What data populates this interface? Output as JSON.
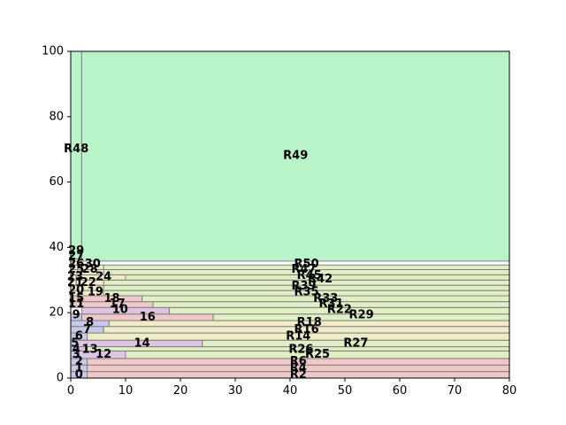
{
  "chart_data": {
    "type": "treemap-rectangles",
    "xlim": [
      0,
      80
    ],
    "ylim": [
      0,
      100
    ],
    "x_ticks": [
      "0",
      "10",
      "20",
      "30",
      "40",
      "50",
      "60",
      "70",
      "80"
    ],
    "y_ticks": [
      "0",
      "20",
      "40",
      "60",
      "80",
      "100"
    ],
    "grid": false,
    "colors": {
      "blue": "#c8c8ec",
      "red": "#f0c8c8",
      "yellow": "#f0ecc8",
      "lime": "#e0f0c4",
      "purple": "#e0c4e4",
      "green": "#b8f4c8",
      "edge": "#808080"
    },
    "rects": [
      {
        "label": "0",
        "x0": 0,
        "x1": 3,
        "y0": 0,
        "y1": 2,
        "color": "blue"
      },
      {
        "label": "R2",
        "x0": 3,
        "x1": 80,
        "y0": 0,
        "y1": 2,
        "color": "red"
      },
      {
        "label": "1",
        "x0": 0,
        "x1": 3,
        "y0": 2,
        "y1": 4,
        "color": "blue"
      },
      {
        "label": "R4",
        "x0": 3,
        "x1": 80,
        "y0": 2,
        "y1": 4,
        "color": "red"
      },
      {
        "label": "2",
        "x0": 0,
        "x1": 3,
        "y0": 4,
        "y1": 6,
        "color": "blue"
      },
      {
        "label": "R6",
        "x0": 3,
        "x1": 80,
        "y0": 4,
        "y1": 6,
        "color": "red"
      },
      {
        "label": "3",
        "x0": 0,
        "x1": 1.5,
        "y0": 6,
        "y1": 8.3,
        "color": "blue"
      },
      {
        "label": "12",
        "x0": 1.5,
        "x1": 10,
        "y0": 6,
        "y1": 8.3,
        "color": "purple"
      },
      {
        "label": "R25",
        "x0": 10,
        "x1": 80,
        "y0": 6,
        "y1": 8.3,
        "color": "lime"
      },
      {
        "label": "4",
        "x0": 0,
        "x1": 1.5,
        "y0": 8.3,
        "y1": 9.6,
        "color": "blue"
      },
      {
        "label": "13",
        "x0": 1.5,
        "x1": 3,
        "y0": 8.3,
        "y1": 9.6,
        "color": "purple"
      },
      {
        "label": "R26",
        "x0": 3,
        "x1": 80,
        "y0": 8.3,
        "y1": 9.6,
        "color": "lime"
      },
      {
        "label": "5",
        "x0": 0,
        "x1": 1,
        "y0": 9.6,
        "y1": 11.6,
        "color": "blue"
      },
      {
        "label": "14",
        "x0": 1,
        "x1": 24,
        "y0": 9.6,
        "y1": 11.6,
        "color": "purple"
      },
      {
        "label": "R27",
        "x0": 24,
        "x1": 80,
        "y0": 9.6,
        "y1": 11.6,
        "color": "lime"
      },
      {
        "label": "6",
        "x0": 0,
        "x1": 3,
        "y0": 11.6,
        "y1": 13.8,
        "color": "blue"
      },
      {
        "label": "R14",
        "x0": 3,
        "x1": 80,
        "y0": 11.6,
        "y1": 13.8,
        "color": "yellow"
      },
      {
        "label": "7",
        "x0": 0,
        "x1": 6,
        "y0": 13.8,
        "y1": 15.8,
        "color": "blue"
      },
      {
        "label": "R16",
        "x0": 6,
        "x1": 80,
        "y0": 13.8,
        "y1": 15.8,
        "color": "yellow"
      },
      {
        "label": "8",
        "x0": 0,
        "x1": 7,
        "y0": 15.8,
        "y1": 17.6,
        "color": "blue"
      },
      {
        "label": "R18",
        "x0": 7,
        "x1": 80,
        "y0": 15.8,
        "y1": 17.6,
        "color": "yellow"
      },
      {
        "label": "9",
        "x0": 0,
        "x1": 2,
        "y0": 17.6,
        "y1": 19.6,
        "color": "blue"
      },
      {
        "label": "16",
        "x0": 2,
        "x1": 26,
        "y0": 17.6,
        "y1": 19.6,
        "color": "red"
      },
      {
        "label": "R29",
        "x0": 26,
        "x1": 80,
        "y0": 17.6,
        "y1": 19.6,
        "color": "lime"
      },
      {
        "label": "10",
        "x0": 2,
        "x1": 18,
        "y0": 19.6,
        "y1": 21.6,
        "color": "purple"
      },
      {
        "label": "R22",
        "x0": 18,
        "x1": 80,
        "y0": 19.6,
        "y1": 21.6,
        "color": "lime"
      },
      {
        "label": "11",
        "x0": 0,
        "x1": 2,
        "y0": 21.6,
        "y1": 23.4,
        "color": "red"
      },
      {
        "label": "17",
        "x0": 2,
        "x1": 15,
        "y0": 21.6,
        "y1": 23.4,
        "color": "red"
      },
      {
        "label": "R31",
        "x0": 15,
        "x1": 80,
        "y0": 21.6,
        "y1": 23.4,
        "color": "lime"
      },
      {
        "label": "15",
        "x0": 0,
        "x1": 2,
        "y0": 23.4,
        "y1": 25.2,
        "color": "red"
      },
      {
        "label": "18",
        "x0": 2,
        "x1": 13,
        "y0": 23.4,
        "y1": 25.2,
        "color": "red"
      },
      {
        "label": "R33",
        "x0": 13,
        "x1": 80,
        "y0": 23.4,
        "y1": 25.2,
        "color": "lime"
      },
      {
        "label": "19",
        "x0": 0,
        "x1": 6,
        "y0": 25.2,
        "y1": 26.8,
        "color": "yellow"
      },
      {
        "label": "R35",
        "x0": 6,
        "x1": 80,
        "y0": 25.2,
        "y1": 26.8,
        "color": "lime"
      },
      {
        "label": "20",
        "x0": 0,
        "x1": 6,
        "y0": 26.8,
        "y1": 28.4,
        "color": "yellow"
      },
      {
        "label": "R39",
        "x0": 6,
        "x1": 80,
        "y0": 26.8,
        "y1": 28.4,
        "color": "lime"
      },
      {
        "label": "21",
        "x0": 0,
        "x1": 1,
        "y0": 28.4,
        "y1": 30.0,
        "color": "yellow"
      },
      {
        "label": "22",
        "x0": 1,
        "x1": 6,
        "y0": 28.4,
        "y1": 30.0,
        "color": "yellow"
      },
      {
        "label": "R42",
        "x0": 6,
        "x1": 80,
        "y0": 28.4,
        "y1": 30.0,
        "color": "lime"
      },
      {
        "label": "23",
        "x0": 0,
        "x1": 1,
        "y0": 30.0,
        "y1": 31.6,
        "color": "yellow"
      },
      {
        "label": "24",
        "x0": 1,
        "x1": 10,
        "y0": 30.0,
        "y1": 31.6,
        "color": "yellow"
      },
      {
        "label": "R45",
        "x0": 10,
        "x1": 80,
        "y0": 30.0,
        "y1": 31.6,
        "color": "lime"
      },
      {
        "label": "25",
        "x0": 0,
        "x1": 2,
        "y0": 31.6,
        "y1": 33.2,
        "color": "yellow"
      },
      {
        "label": "28",
        "x0": 2,
        "x1": 6,
        "y0": 31.6,
        "y1": 33.2,
        "color": "yellow"
      },
      {
        "label": "R47",
        "x0": 6,
        "x1": 80,
        "y0": 31.6,
        "y1": 33.2,
        "color": "lime"
      },
      {
        "label": "26",
        "x0": 0,
        "x1": 2,
        "y0": 33.2,
        "y1": 34.6,
        "color": "yellow"
      },
      {
        "label": "30",
        "x0": 2,
        "x1": 6,
        "y0": 33.2,
        "y1": 34.6,
        "color": "yellow"
      },
      {
        "label": "R50",
        "x0": 6,
        "x1": 80,
        "y0": 33.2,
        "y1": 34.6,
        "color": "lime"
      },
      {
        "label": "27",
        "x0": 0,
        "x1": 2,
        "y0": 34.6,
        "y1": 35.8,
        "color": "yellow"
      },
      {
        "label": "29",
        "x0": 0,
        "x1": 2,
        "y0": 35.8,
        "y1": 36.5,
        "color": "yellow"
      },
      {
        "label": "R48",
        "x0": 0,
        "x1": 2,
        "y0": 36.5,
        "y1": 100,
        "color": "green"
      },
      {
        "label": "R49",
        "x0": 2,
        "x1": 80,
        "y0": 35.8,
        "y1": 100,
        "color": "green"
      }
    ],
    "labels": [
      {
        "text": "0",
        "x": 1.5,
        "y": 1.0
      },
      {
        "text": "R2",
        "x": 41.5,
        "y": 1.0
      },
      {
        "text": "1",
        "x": 1.5,
        "y": 3.0
      },
      {
        "text": "R4",
        "x": 41.5,
        "y": 3.0
      },
      {
        "text": "2",
        "x": 1.5,
        "y": 5.0
      },
      {
        "text": "R6",
        "x": 41.5,
        "y": 5.0
      },
      {
        "text": "3",
        "x": 1.0,
        "y": 7.2
      },
      {
        "text": "12",
        "x": 6.0,
        "y": 7.2
      },
      {
        "text": "R25",
        "x": 45.0,
        "y": 7.2
      },
      {
        "text": "4",
        "x": 1.0,
        "y": 8.7
      },
      {
        "text": "13",
        "x": 3.5,
        "y": 8.7
      },
      {
        "text": "R26",
        "x": 42.0,
        "y": 8.7
      },
      {
        "text": "5",
        "x": 0.8,
        "y": 10.6
      },
      {
        "text": "14",
        "x": 13.0,
        "y": 10.6
      },
      {
        "text": "R27",
        "x": 52.0,
        "y": 10.6
      },
      {
        "text": "6",
        "x": 1.5,
        "y": 12.7
      },
      {
        "text": "R14",
        "x": 41.5,
        "y": 12.7
      },
      {
        "text": "7",
        "x": 3.0,
        "y": 14.8
      },
      {
        "text": "R16",
        "x": 43.0,
        "y": 14.8
      },
      {
        "text": "8",
        "x": 3.5,
        "y": 16.9
      },
      {
        "text": "R18",
        "x": 43.5,
        "y": 16.9
      },
      {
        "text": "9",
        "x": 1.0,
        "y": 19.3
      },
      {
        "text": "16",
        "x": 14.0,
        "y": 18.6
      },
      {
        "text": "R29",
        "x": 53.0,
        "y": 19.3
      },
      {
        "text": "10",
        "x": 9.0,
        "y": 20.8
      },
      {
        "text": "R22",
        "x": 49.0,
        "y": 20.8
      },
      {
        "text": "11",
        "x": 1.0,
        "y": 22.6
      },
      {
        "text": "17",
        "x": 8.5,
        "y": 22.6
      },
      {
        "text": "R31",
        "x": 47.5,
        "y": 22.6
      },
      {
        "text": "15",
        "x": 1.0,
        "y": 24.3
      },
      {
        "text": "18",
        "x": 7.5,
        "y": 24.3
      },
      {
        "text": "R33",
        "x": 46.5,
        "y": 24.3
      },
      {
        "text": "19",
        "x": 4.5,
        "y": 26.3
      },
      {
        "text": "R35",
        "x": 43.0,
        "y": 26.3
      },
      {
        "text": "20",
        "x": 1.0,
        "y": 26.8
      },
      {
        "text": "R39",
        "x": 42.5,
        "y": 28.0
      },
      {
        "text": "21",
        "x": 0.8,
        "y": 29.2
      },
      {
        "text": "22",
        "x": 3.2,
        "y": 29.2
      },
      {
        "text": "R42",
        "x": 45.5,
        "y": 30.2
      },
      {
        "text": "23",
        "x": 0.8,
        "y": 30.9
      },
      {
        "text": "24",
        "x": 6.0,
        "y": 30.9
      },
      {
        "text": "R45",
        "x": 43.5,
        "y": 31.3
      },
      {
        "text": "25",
        "x": 1.0,
        "y": 33.2
      },
      {
        "text": "28",
        "x": 3.5,
        "y": 33.2
      },
      {
        "text": "R47",
        "x": 42.5,
        "y": 33.2
      },
      {
        "text": "26",
        "x": 1.0,
        "y": 34.8
      },
      {
        "text": "30",
        "x": 4.0,
        "y": 34.8
      },
      {
        "text": "R50",
        "x": 43.0,
        "y": 34.8
      },
      {
        "text": "27",
        "x": 1.0,
        "y": 37.2
      },
      {
        "text": "29",
        "x": 1.0,
        "y": 38.9
      },
      {
        "text": "R48",
        "x": 1.0,
        "y": 70.0
      },
      {
        "text": "R49",
        "x": 41.0,
        "y": 68.0
      }
    ]
  }
}
